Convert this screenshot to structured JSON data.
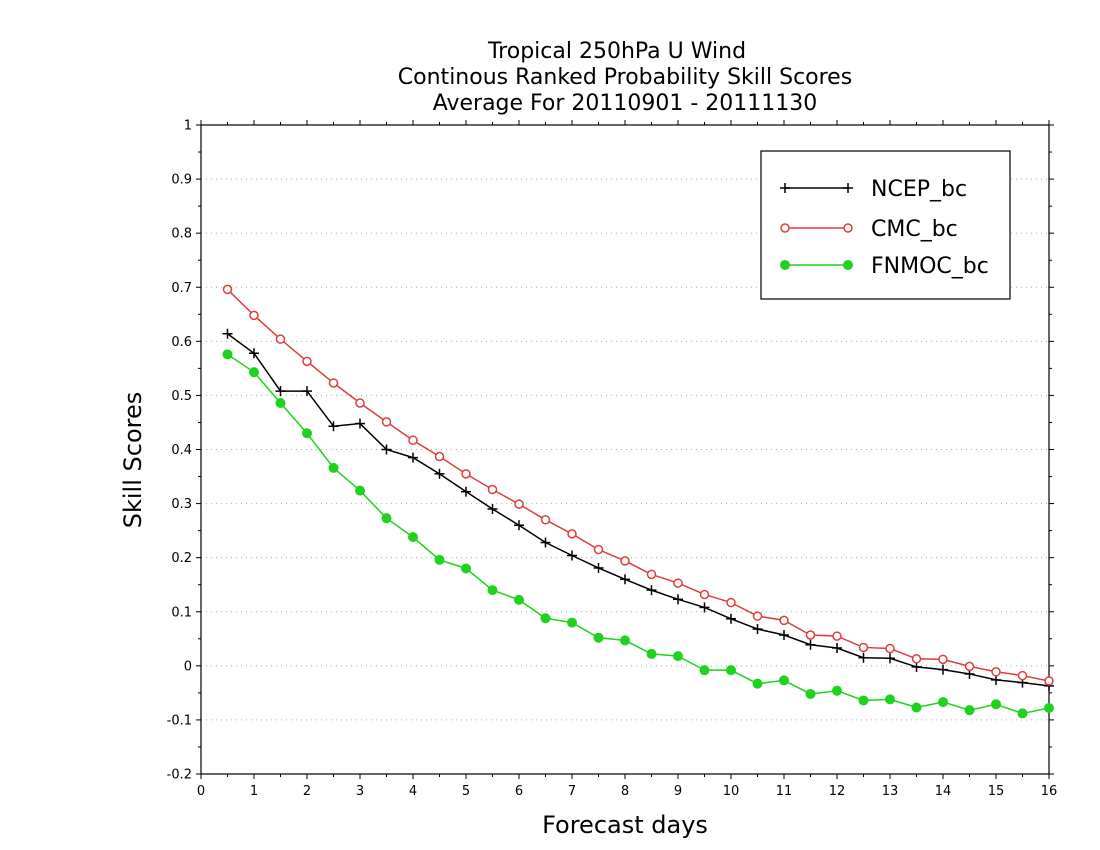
{
  "chart_data": {
    "type": "line",
    "title_lines": [
      "Tropical 250hPa U Wind",
      "Continous Ranked Probability Skill Scores",
      "Average For 20110901 - 20111130"
    ],
    "xlabel": "Forecast days",
    "ylabel": "Skill Scores",
    "xlim": [
      0,
      16
    ],
    "ylim": [
      -0.2,
      1
    ],
    "x_ticks": [
      0,
      1,
      2,
      3,
      4,
      5,
      6,
      7,
      8,
      9,
      10,
      11,
      12,
      13,
      14,
      15,
      16
    ],
    "y_ticks": [
      -0.2,
      -0.1,
      0,
      0.1,
      0.2,
      0.3,
      0.4,
      0.5,
      0.6,
      0.7,
      0.8,
      0.9,
      1
    ],
    "y_tick_labels": [
      "-0.2",
      "-0.1",
      "0",
      "0.1",
      "0.2",
      "0.3",
      "0.4",
      "0.5",
      "0.6",
      "0.7",
      "0.8",
      "0.9",
      "1"
    ],
    "grid": "horizontal dotted",
    "legend_position": "top-right",
    "x": [
      0.5,
      1,
      1.5,
      2,
      2.5,
      3,
      3.5,
      4,
      4.5,
      5,
      5.5,
      6,
      6.5,
      7,
      7.5,
      8,
      8.5,
      9,
      9.5,
      10,
      10.5,
      11,
      11.5,
      12,
      12.5,
      13,
      13.5,
      14,
      14.5,
      15,
      15.5,
      16
    ],
    "series": [
      {
        "name": "NCEP_bc",
        "color": "#000000",
        "marker": "plus",
        "values": [
          0.614,
          0.578,
          0.508,
          0.508,
          0.443,
          0.448,
          0.4,
          0.385,
          0.355,
          0.322,
          0.29,
          0.26,
          0.228,
          0.204,
          0.181,
          0.16,
          0.14,
          0.123,
          0.108,
          0.087,
          0.068,
          0.057,
          0.039,
          0.033,
          0.015,
          0.014,
          -0.002,
          -0.007,
          -0.015,
          -0.026,
          -0.031,
          -0.037
        ]
      },
      {
        "name": "CMC_bc",
        "color": "#e03c3c",
        "marker": "open-circle",
        "values": [
          0.696,
          0.648,
          0.604,
          0.563,
          0.523,
          0.486,
          0.451,
          0.417,
          0.387,
          0.355,
          0.326,
          0.299,
          0.27,
          0.244,
          0.215,
          0.194,
          0.169,
          0.153,
          0.132,
          0.117,
          0.092,
          0.084,
          0.057,
          0.055,
          0.034,
          0.032,
          0.013,
          0.012,
          -0.001,
          -0.011,
          -0.018,
          -0.028
        ]
      },
      {
        "name": "FNMOC_bc",
        "color": "#1ed21e",
        "marker": "filled-circle",
        "values": [
          0.576,
          0.543,
          0.486,
          0.43,
          0.366,
          0.324,
          0.273,
          0.238,
          0.196,
          0.18,
          0.14,
          0.122,
          0.088,
          0.08,
          0.052,
          0.047,
          0.022,
          0.018,
          -0.008,
          -0.008,
          -0.033,
          -0.027,
          -0.052,
          -0.046,
          -0.064,
          -0.062,
          -0.077,
          -0.067,
          -0.082,
          -0.071,
          -0.088,
          -0.078
        ]
      }
    ]
  }
}
